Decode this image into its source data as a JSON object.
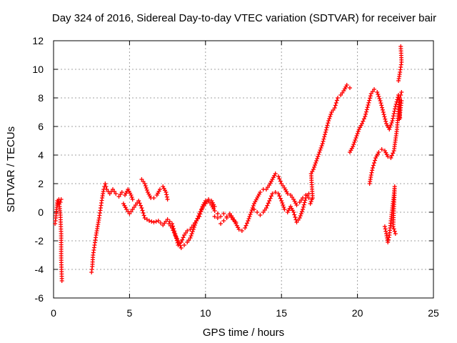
{
  "chart_data": {
    "type": "scatter",
    "title": "Day 324 of 2016, Sidereal Day-to-day VTEC variation (SDTVAR) for receiver bair",
    "xlabel": "GPS time / hours",
    "ylabel": "SDTVAR / TECUs",
    "xlim": [
      0,
      25
    ],
    "ylim": [
      -6,
      12
    ],
    "xticks": [
      "0",
      "5",
      "10",
      "15",
      "20",
      "25"
    ],
    "yticks": [
      "-6",
      "-4",
      "-2",
      "0",
      "2",
      "4",
      "6",
      "8",
      "10",
      "12"
    ],
    "grid": true,
    "marker": "plus",
    "marker_color": "#ff0000",
    "series": [
      {
        "name": "s1",
        "points": [
          [
            0.1,
            -0.8
          ],
          [
            0.15,
            -0.4
          ],
          [
            0.2,
            0.2
          ],
          [
            0.25,
            0.8
          ],
          [
            0.3,
            0.6
          ],
          [
            0.35,
            0.9
          ],
          [
            0.4,
            0.4
          ],
          [
            0.45,
            -0.2
          ],
          [
            0.5,
            -1.5
          ],
          [
            0.5,
            -3.2
          ],
          [
            0.55,
            -4.8
          ],
          [
            0.45,
            0.7
          ],
          [
            0.5,
            0.9
          ]
        ]
      },
      {
        "name": "s2",
        "points": [
          [
            2.5,
            -4.2
          ],
          [
            2.55,
            -3.8
          ],
          [
            2.6,
            -3.0
          ],
          [
            2.7,
            -2.3
          ],
          [
            2.8,
            -1.6
          ],
          [
            2.9,
            -1.0
          ],
          [
            3.0,
            -0.4
          ],
          [
            3.1,
            0.3
          ],
          [
            3.2,
            1.0
          ],
          [
            3.3,
            1.6
          ],
          [
            3.4,
            2.0
          ],
          [
            3.5,
            1.6
          ],
          [
            3.7,
            1.3
          ],
          [
            3.9,
            1.6
          ],
          [
            4.1,
            1.3
          ],
          [
            4.3,
            1.1
          ],
          [
            4.5,
            1.4
          ],
          [
            4.7,
            1.2
          ],
          [
            4.9,
            1.6
          ],
          [
            5.1,
            1.2
          ],
          [
            5.2,
            0.9
          ]
        ]
      },
      {
        "name": "s3",
        "points": [
          [
            4.6,
            0.6
          ],
          [
            4.8,
            0.2
          ],
          [
            5.0,
            -0.1
          ],
          [
            5.2,
            0.2
          ],
          [
            5.4,
            0.5
          ],
          [
            5.6,
            0.8
          ],
          [
            5.8,
            0.3
          ],
          [
            6.0,
            -0.4
          ],
          [
            6.3,
            -0.6
          ],
          [
            6.6,
            -0.7
          ],
          [
            6.9,
            -0.6
          ],
          [
            7.2,
            -0.9
          ],
          [
            7.5,
            -0.5
          ],
          [
            7.8,
            -0.8
          ],
          [
            8.0,
            -1.5
          ],
          [
            8.2,
            -2.3
          ],
          [
            8.4,
            -2.1
          ],
          [
            8.6,
            -1.6
          ],
          [
            8.8,
            -1.3
          ],
          [
            9.0,
            -1.2
          ],
          [
            9.2,
            -0.9
          ],
          [
            9.4,
            -0.6
          ],
          [
            9.6,
            -0.3
          ],
          [
            9.8,
            0.4
          ],
          [
            10.0,
            0.8
          ],
          [
            10.2,
            0.8
          ],
          [
            10.4,
            0.5
          ],
          [
            10.6,
            0.1
          ],
          [
            10.8,
            -0.1
          ]
        ]
      },
      {
        "name": "s4",
        "points": [
          [
            5.8,
            2.3
          ],
          [
            6.0,
            2.0
          ],
          [
            6.2,
            1.4
          ],
          [
            6.4,
            1.0
          ],
          [
            6.6,
            1.0
          ],
          [
            6.8,
            1.2
          ],
          [
            7.0,
            1.6
          ],
          [
            7.2,
            1.8
          ],
          [
            7.4,
            1.4
          ],
          [
            7.5,
            0.9
          ]
        ]
      },
      {
        "name": "s5",
        "points": [
          [
            7.6,
            -0.8
          ],
          [
            7.8,
            -1.1
          ],
          [
            8.0,
            -1.6
          ],
          [
            8.2,
            -2.0
          ],
          [
            8.4,
            -2.5
          ],
          [
            8.6,
            -2.3
          ],
          [
            8.8,
            -2.1
          ],
          [
            9.0,
            -1.8
          ],
          [
            9.2,
            -1.2
          ],
          [
            9.4,
            -0.6
          ],
          [
            9.6,
            -0.1
          ],
          [
            9.8,
            0.3
          ],
          [
            10.0,
            0.6
          ],
          [
            10.2,
            0.9
          ],
          [
            10.4,
            0.8
          ],
          [
            10.6,
            0.4
          ]
        ]
      },
      {
        "name": "s6",
        "points": [
          [
            10.6,
            -0.3
          ],
          [
            10.8,
            -0.4
          ],
          [
            11.0,
            -0.3
          ],
          [
            11.2,
            -0.1
          ],
          [
            11.4,
            -0.3
          ],
          [
            11.6,
            -0.1
          ],
          [
            11.8,
            -0.4
          ],
          [
            12.0,
            -0.8
          ],
          [
            12.2,
            -1.2
          ],
          [
            12.4,
            -1.3
          ],
          [
            12.6,
            -1.1
          ],
          [
            12.8,
            -0.6
          ],
          [
            13.0,
            0.0
          ],
          [
            13.2,
            0.6
          ],
          [
            13.4,
            1.0
          ],
          [
            13.6,
            1.4
          ],
          [
            13.8,
            1.6
          ],
          [
            14.0,
            1.6
          ],
          [
            14.2,
            1.9
          ],
          [
            14.4,
            2.3
          ],
          [
            14.6,
            2.7
          ],
          [
            14.8,
            2.5
          ],
          [
            15.0,
            2.0
          ],
          [
            15.2,
            1.7
          ],
          [
            15.4,
            1.3
          ],
          [
            15.6,
            1.2
          ],
          [
            15.8,
            0.9
          ],
          [
            16.0,
            0.5
          ],
          [
            16.2,
            0.7
          ],
          [
            16.4,
            1.0
          ],
          [
            16.6,
            1.2
          ],
          [
            16.8,
            1.0
          ]
        ]
      },
      {
        "name": "s7",
        "points": [
          [
            11.0,
            -0.8
          ],
          [
            11.2,
            -0.6
          ],
          [
            11.4,
            -0.4
          ],
          [
            11.6,
            -0.2
          ],
          [
            11.8,
            -0.5
          ],
          [
            12.0,
            -0.7
          ]
        ]
      },
      {
        "name": "s8",
        "points": [
          [
            13.2,
            0.2
          ],
          [
            13.4,
            0.0
          ],
          [
            13.6,
            -0.2
          ],
          [
            13.8,
            0.0
          ],
          [
            14.0,
            0.3
          ],
          [
            14.2,
            0.8
          ],
          [
            14.4,
            1.3
          ],
          [
            14.6,
            1.4
          ],
          [
            14.8,
            1.3
          ],
          [
            15.0,
            0.8
          ],
          [
            15.2,
            0.2
          ],
          [
            15.4,
            0.0
          ],
          [
            15.6,
            0.4
          ],
          [
            15.8,
            0.0
          ],
          [
            16.0,
            -0.7
          ],
          [
            16.2,
            -0.4
          ],
          [
            16.4,
            0.2
          ],
          [
            16.6,
            1.0
          ],
          [
            16.8,
            1.3
          ]
        ]
      },
      {
        "name": "s9",
        "points": [
          [
            16.9,
            0.6
          ],
          [
            17.0,
            0.9
          ],
          [
            17.05,
            1.0
          ],
          [
            16.95,
            2.7
          ],
          [
            17.1,
            3.0
          ],
          [
            17.3,
            3.6
          ],
          [
            17.5,
            4.2
          ],
          [
            17.7,
            4.8
          ],
          [
            17.9,
            5.6
          ],
          [
            18.1,
            6.4
          ],
          [
            18.3,
            7.0
          ],
          [
            18.5,
            7.3
          ],
          [
            18.7,
            8.0
          ],
          [
            18.9,
            8.2
          ],
          [
            19.1,
            8.5
          ],
          [
            19.3,
            8.9
          ],
          [
            19.5,
            8.7
          ]
        ]
      },
      {
        "name": "s10",
        "points": [
          [
            19.5,
            4.2
          ],
          [
            19.7,
            4.6
          ],
          [
            19.9,
            5.2
          ],
          [
            20.1,
            5.8
          ],
          [
            20.3,
            6.2
          ],
          [
            20.5,
            6.7
          ],
          [
            20.7,
            7.5
          ],
          [
            20.9,
            8.3
          ],
          [
            21.1,
            8.6
          ],
          [
            21.3,
            8.4
          ],
          [
            21.5,
            7.8
          ],
          [
            21.7,
            7.0
          ],
          [
            21.9,
            6.2
          ],
          [
            22.1,
            5.8
          ],
          [
            22.3,
            6.4
          ],
          [
            22.5,
            7.4
          ],
          [
            22.7,
            8.2
          ],
          [
            22.8,
            6.6
          ]
        ]
      },
      {
        "name": "s11",
        "points": [
          [
            20.8,
            2.0
          ],
          [
            20.9,
            2.6
          ],
          [
            21.0,
            3.1
          ],
          [
            21.2,
            3.8
          ],
          [
            21.4,
            4.2
          ],
          [
            21.6,
            4.4
          ],
          [
            21.8,
            4.3
          ],
          [
            22.0,
            3.9
          ],
          [
            22.2,
            3.8
          ],
          [
            22.4,
            4.3
          ],
          [
            22.6,
            5.8
          ],
          [
            22.7,
            7.2
          ],
          [
            22.8,
            8.0
          ],
          [
            22.9,
            8.4
          ]
        ]
      },
      {
        "name": "s12",
        "points": [
          [
            21.8,
            -1.0
          ],
          [
            21.9,
            -1.5
          ],
          [
            22.0,
            -2.1
          ],
          [
            22.1,
            -1.6
          ],
          [
            22.2,
            -0.6
          ],
          [
            22.3,
            0.3
          ],
          [
            22.4,
            1.2
          ],
          [
            22.45,
            1.8
          ],
          [
            22.35,
            -1.0
          ],
          [
            22.5,
            -1.5
          ]
        ]
      },
      {
        "name": "s13",
        "points": [
          [
            22.7,
            9.2
          ],
          [
            22.8,
            9.8
          ],
          [
            22.9,
            10.5
          ],
          [
            22.85,
            11.6
          ],
          [
            22.75,
            6.5
          ],
          [
            22.9,
            7.8
          ]
        ]
      }
    ]
  }
}
